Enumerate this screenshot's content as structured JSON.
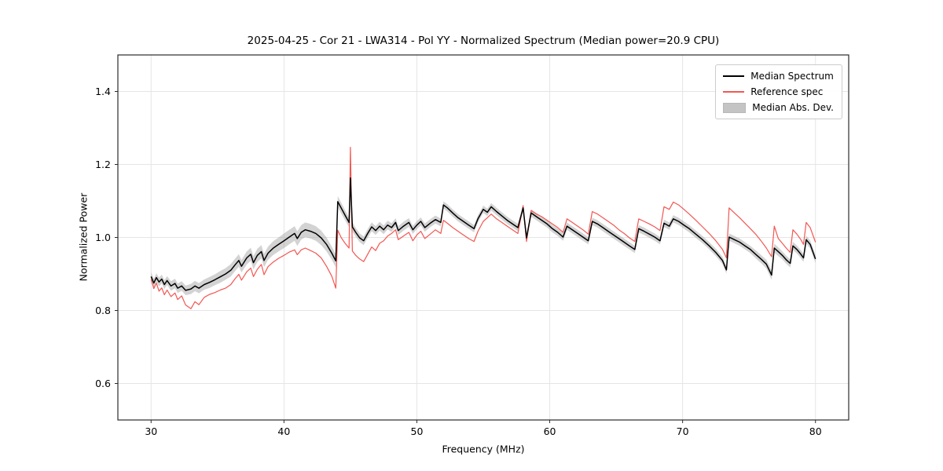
{
  "chart_data": {
    "type": "line",
    "title": "2025-04-25 - Cor 21 - LWA314 - Pol YY - Normalized Spectrum (Median power=20.9 CPU)",
    "xlabel": "Frequency (MHz)",
    "ylabel": "Normalized Power",
    "xlim": [
      27.5,
      82.5
    ],
    "ylim": [
      0.5,
      1.5
    ],
    "xticks": [
      30,
      40,
      50,
      60,
      70,
      80
    ],
    "xtick_labels": [
      "30",
      "40",
      "50",
      "60",
      "70",
      "80"
    ],
    "yticks": [
      0.6,
      0.8,
      1.0,
      1.2,
      1.4
    ],
    "ytick_labels": [
      "0.6",
      "0.8",
      "1.0",
      "1.2",
      "1.4"
    ],
    "grid": true,
    "legend_position": "upper right",
    "series": [
      {
        "name": "Median Spectrum",
        "color": "#000000",
        "line_width": 1.5
      },
      {
        "name": "Reference spec",
        "color": "#f25752",
        "line_width": 1.2
      }
    ],
    "band": {
      "name": "Median Abs. Dev.",
      "color": "#9e9e9e",
      "opacity": 0.45,
      "edge": "#8a8a8a"
    },
    "point_format": [
      "freq_mhz",
      "median_spectrum",
      "reference_spectrum",
      "median_abs_dev"
    ],
    "points": [
      [
        30.0,
        0.893,
        0.885,
        0.012
      ],
      [
        30.2,
        0.875,
        0.86,
        0.012
      ],
      [
        30.4,
        0.89,
        0.875,
        0.012
      ],
      [
        30.6,
        0.878,
        0.853,
        0.012
      ],
      [
        30.8,
        0.886,
        0.862,
        0.012
      ],
      [
        31.0,
        0.871,
        0.843,
        0.012
      ],
      [
        31.2,
        0.882,
        0.856,
        0.012
      ],
      [
        31.5,
        0.867,
        0.838,
        0.013
      ],
      [
        31.8,
        0.874,
        0.848,
        0.013
      ],
      [
        32.0,
        0.861,
        0.83,
        0.013
      ],
      [
        32.3,
        0.867,
        0.84,
        0.013
      ],
      [
        32.6,
        0.855,
        0.815,
        0.013
      ],
      [
        33.0,
        0.859,
        0.805,
        0.014
      ],
      [
        33.3,
        0.867,
        0.824,
        0.014
      ],
      [
        33.6,
        0.861,
        0.816,
        0.014
      ],
      [
        34.0,
        0.871,
        0.836,
        0.014
      ],
      [
        34.4,
        0.877,
        0.844,
        0.015
      ],
      [
        34.8,
        0.884,
        0.849,
        0.015
      ],
      [
        35.2,
        0.892,
        0.856,
        0.016
      ],
      [
        35.6,
        0.9,
        0.861,
        0.016
      ],
      [
        36.0,
        0.91,
        0.871,
        0.017
      ],
      [
        36.3,
        0.924,
        0.886,
        0.017
      ],
      [
        36.6,
        0.937,
        0.899,
        0.017
      ],
      [
        36.8,
        0.921,
        0.883,
        0.017
      ],
      [
        37.2,
        0.944,
        0.906,
        0.018
      ],
      [
        37.5,
        0.954,
        0.916,
        0.018
      ],
      [
        37.7,
        0.931,
        0.893,
        0.018
      ],
      [
        38.0,
        0.951,
        0.913,
        0.018
      ],
      [
        38.3,
        0.961,
        0.926,
        0.018
      ],
      [
        38.5,
        0.937,
        0.898,
        0.018
      ],
      [
        38.8,
        0.957,
        0.92,
        0.018
      ],
      [
        39.2,
        0.971,
        0.933,
        0.019
      ],
      [
        39.6,
        0.981,
        0.943,
        0.019
      ],
      [
        40.0,
        0.991,
        0.951,
        0.02
      ],
      [
        40.4,
        1.001,
        0.96,
        0.02
      ],
      [
        40.8,
        1.011,
        0.966,
        0.02
      ],
      [
        41.0,
        0.997,
        0.953,
        0.02
      ],
      [
        41.3,
        1.014,
        0.966,
        0.02
      ],
      [
        41.6,
        1.021,
        0.971,
        0.02
      ],
      [
        42.0,
        1.017,
        0.964,
        0.02
      ],
      [
        42.4,
        1.011,
        0.957,
        0.02
      ],
      [
        42.8,
        0.999,
        0.944,
        0.02
      ],
      [
        43.2,
        0.981,
        0.921,
        0.019
      ],
      [
        43.6,
        0.957,
        0.894,
        0.018
      ],
      [
        43.9,
        0.936,
        0.861,
        0.018
      ],
      [
        44.05,
        1.098,
        1.02,
        0.015
      ],
      [
        44.3,
        1.081,
        1.0,
        0.015
      ],
      [
        44.6,
        1.061,
        0.984,
        0.014
      ],
      [
        44.9,
        1.041,
        0.971,
        0.013
      ],
      [
        45.0,
        1.163,
        1.247,
        0.013
      ],
      [
        45.15,
        1.029,
        0.963,
        0.013
      ],
      [
        45.4,
        1.014,
        0.951,
        0.012
      ],
      [
        45.7,
        0.999,
        0.941,
        0.012
      ],
      [
        46.0,
        0.991,
        0.934,
        0.012
      ],
      [
        46.3,
        1.011,
        0.954,
        0.012
      ],
      [
        46.6,
        1.029,
        0.974,
        0.012
      ],
      [
        46.9,
        1.019,
        0.964,
        0.012
      ],
      [
        47.2,
        1.031,
        0.984,
        0.012
      ],
      [
        47.5,
        1.021,
        0.991,
        0.012
      ],
      [
        47.8,
        1.034,
        1.004,
        0.012
      ],
      [
        48.1,
        1.027,
        1.011,
        0.012
      ],
      [
        48.4,
        1.041,
        1.021,
        0.012
      ],
      [
        48.6,
        1.019,
        0.994,
        0.012
      ],
      [
        49.0,
        1.031,
        1.004,
        0.012
      ],
      [
        49.4,
        1.041,
        1.014,
        0.012
      ],
      [
        49.7,
        1.021,
        0.991,
        0.011
      ],
      [
        50.0,
        1.034,
        1.007,
        0.011
      ],
      [
        50.3,
        1.044,
        1.017,
        0.011
      ],
      [
        50.6,
        1.027,
        0.997,
        0.011
      ],
      [
        51.0,
        1.039,
        1.009,
        0.011
      ],
      [
        51.4,
        1.049,
        1.021,
        0.011
      ],
      [
        51.8,
        1.041,
        1.011,
        0.011
      ],
      [
        52.0,
        1.089,
        1.047,
        0.01
      ],
      [
        52.3,
        1.081,
        1.039,
        0.01
      ],
      [
        52.7,
        1.067,
        1.027,
        0.01
      ],
      [
        53.1,
        1.054,
        1.017,
        0.01
      ],
      [
        53.5,
        1.044,
        1.007,
        0.01
      ],
      [
        53.9,
        1.034,
        0.997,
        0.01
      ],
      [
        54.3,
        1.024,
        0.989,
        0.01
      ],
      [
        54.6,
        1.051,
        1.017,
        0.01
      ],
      [
        55.0,
        1.077,
        1.044,
        0.01
      ],
      [
        55.3,
        1.069,
        1.054,
        0.01
      ],
      [
        55.6,
        1.084,
        1.064,
        0.01
      ],
      [
        56.0,
        1.071,
        1.051,
        0.01
      ],
      [
        56.4,
        1.059,
        1.041,
        0.01
      ],
      [
        56.8,
        1.047,
        1.031,
        0.01
      ],
      [
        57.2,
        1.037,
        1.021,
        0.01
      ],
      [
        57.6,
        1.027,
        1.011,
        0.01
      ],
      [
        58.0,
        1.081,
        1.087,
        0.01
      ],
      [
        58.25,
        0.999,
        0.989,
        0.01
      ],
      [
        58.6,
        1.067,
        1.074,
        0.01
      ],
      [
        59.0,
        1.057,
        1.064,
        0.01
      ],
      [
        59.4,
        1.047,
        1.057,
        0.01
      ],
      [
        59.8,
        1.037,
        1.047,
        0.01
      ],
      [
        60.2,
        1.024,
        1.037,
        0.01
      ],
      [
        60.6,
        1.014,
        1.027,
        0.01
      ],
      [
        61.0,
        1.001,
        1.014,
        0.01
      ],
      [
        61.3,
        1.031,
        1.051,
        0.01
      ],
      [
        61.7,
        1.021,
        1.041,
        0.01
      ],
      [
        62.1,
        1.011,
        1.031,
        0.01
      ],
      [
        62.5,
        1.001,
        1.021,
        0.01
      ],
      [
        62.9,
        0.991,
        1.009,
        0.01
      ],
      [
        63.2,
        1.044,
        1.071,
        0.01
      ],
      [
        63.6,
        1.037,
        1.064,
        0.01
      ],
      [
        64.0,
        1.027,
        1.054,
        0.01
      ],
      [
        64.4,
        1.017,
        1.044,
        0.01
      ],
      [
        64.8,
        1.007,
        1.034,
        0.01
      ],
      [
        65.2,
        0.997,
        1.021,
        0.01
      ],
      [
        65.6,
        0.987,
        1.011,
        0.01
      ],
      [
        66.0,
        0.977,
        0.999,
        0.01
      ],
      [
        66.4,
        0.967,
        0.989,
        0.01
      ],
      [
        66.7,
        1.024,
        1.051,
        0.01
      ],
      [
        67.1,
        1.017,
        1.044,
        0.01
      ],
      [
        67.5,
        1.009,
        1.037,
        0.01
      ],
      [
        67.9,
        1.001,
        1.029,
        0.01
      ],
      [
        68.3,
        0.991,
        1.019,
        0.01
      ],
      [
        68.6,
        1.039,
        1.084,
        0.01
      ],
      [
        69.0,
        1.031,
        1.077,
        0.01
      ],
      [
        69.3,
        1.051,
        1.097,
        0.01
      ],
      [
        69.7,
        1.044,
        1.089,
        0.01
      ],
      [
        70.1,
        1.034,
        1.077,
        0.01
      ],
      [
        70.5,
        1.024,
        1.064,
        0.01
      ],
      [
        71.0,
        1.009,
        1.047,
        0.01
      ],
      [
        71.5,
        0.994,
        1.029,
        0.01
      ],
      [
        72.0,
        0.977,
        1.011,
        0.01
      ],
      [
        72.5,
        0.959,
        0.991,
        0.01
      ],
      [
        73.0,
        0.937,
        0.967,
        0.01
      ],
      [
        73.3,
        0.911,
        0.944,
        0.01
      ],
      [
        73.5,
        1.001,
        1.081,
        0.01
      ],
      [
        73.9,
        0.994,
        1.067,
        0.01
      ],
      [
        74.3,
        0.987,
        1.054,
        0.01
      ],
      [
        74.7,
        0.977,
        1.039,
        0.01
      ],
      [
        75.1,
        0.967,
        1.024,
        0.01
      ],
      [
        75.5,
        0.954,
        1.009,
        0.011
      ],
      [
        75.9,
        0.941,
        0.991,
        0.011
      ],
      [
        76.3,
        0.927,
        0.971,
        0.012
      ],
      [
        76.7,
        0.897,
        0.947,
        0.013
      ],
      [
        76.9,
        0.971,
        1.031,
        0.012
      ],
      [
        77.2,
        0.961,
        0.997,
        0.012
      ],
      [
        77.5,
        0.951,
        0.984,
        0.011
      ],
      [
        77.8,
        0.939,
        0.971,
        0.011
      ],
      [
        78.1,
        0.929,
        0.959,
        0.011
      ],
      [
        78.3,
        0.977,
        1.021,
        0.011
      ],
      [
        78.6,
        0.967,
        1.009,
        0.011
      ],
      [
        78.9,
        0.954,
        0.994,
        0.011
      ],
      [
        79.1,
        0.944,
        0.981,
        0.011
      ],
      [
        79.3,
        0.994,
        1.041,
        0.011
      ],
      [
        79.6,
        0.981,
        1.027,
        0.011
      ],
      [
        80.0,
        0.941,
        0.987,
        0.011
      ]
    ]
  }
}
